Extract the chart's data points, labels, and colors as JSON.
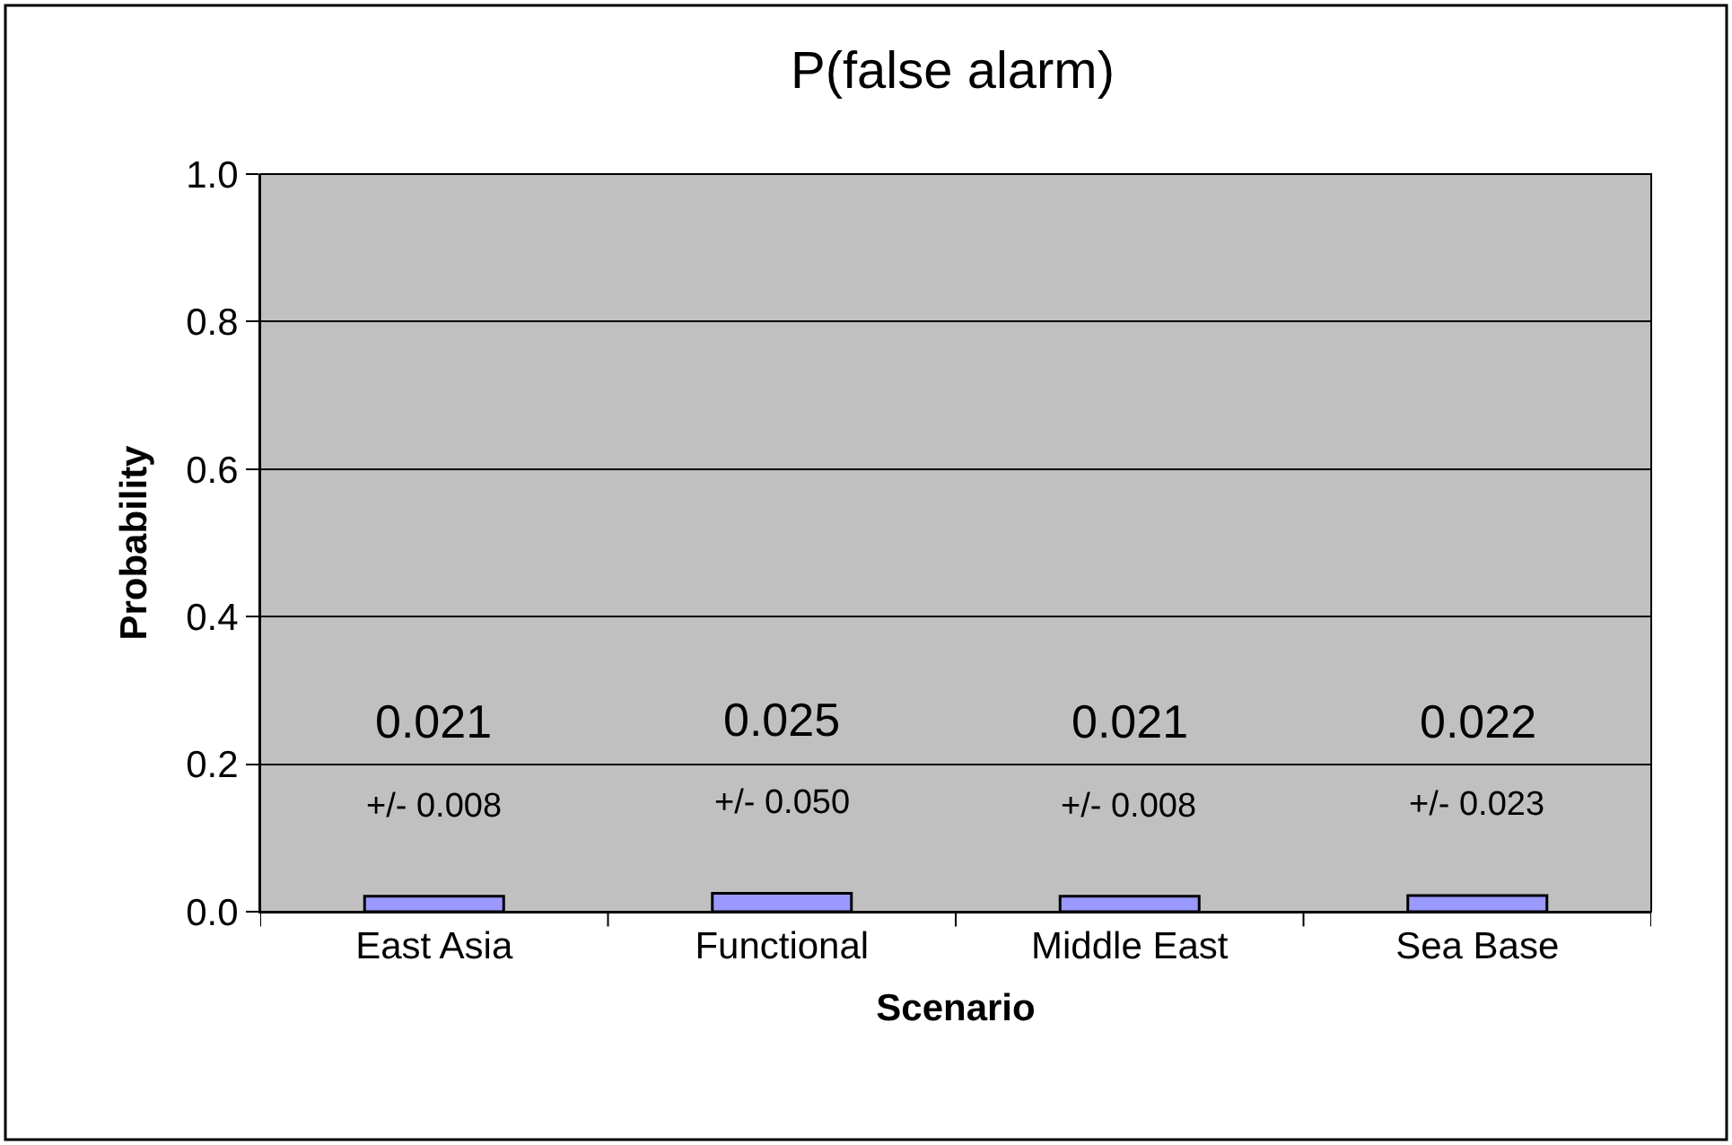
{
  "chart_data": {
    "type": "bar",
    "title": "P(false alarm)",
    "xlabel": "Scenario",
    "ylabel": "Probability",
    "categories": [
      "East Asia",
      "Functional",
      "Middle East",
      "Sea Base"
    ],
    "values": [
      0.021,
      0.025,
      0.021,
      0.022
    ],
    "color": "#9999ff",
    "data_labels": true,
    "ylim": [
      0,
      1
    ],
    "yticks": [
      {
        "value": 0,
        "label": "0.0"
      },
      {
        "value": 0.2,
        "label": "0.2"
      },
      {
        "value": 0.4,
        "label": "0.4"
      },
      {
        "value": 0.6,
        "label": "0.6"
      },
      {
        "value": 0.8,
        "label": "0.8"
      },
      {
        "value": 1,
        "label": "1.0"
      }
    ],
    "grid": "y",
    "annotations": [
      "+/- 0.008",
      "+/- 0.050",
      "+/- 0.008",
      "+/- 0.023"
    ]
  }
}
